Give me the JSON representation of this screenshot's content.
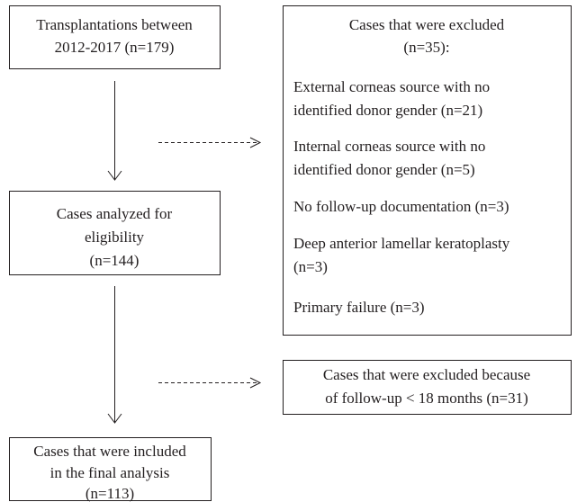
{
  "nodes": [
    {
      "lines": [
        "Transplantations between",
        "2012-2017 (n=179)"
      ]
    },
    {
      "title": [
        "Cases that were excluded",
        "(n=35):"
      ],
      "items": [
        [
          "External corneas source with no",
          "identified donor gender (n=21)"
        ],
        [
          "Internal corneas source with no",
          "identified donor gender (n=5)"
        ],
        [
          "No follow-up documentation (n=3)"
        ],
        [
          "Deep anterior lamellar keratoplasty",
          "(n=3)"
        ],
        [
          "Primary failure (n=3)"
        ]
      ]
    },
    {
      "lines": [
        "Cases analyzed for",
        "eligibility",
        "(n=144)"
      ]
    },
    {
      "lines": [
        "Cases that were excluded because",
        "of follow-up < 18 months (n=31)"
      ]
    },
    {
      "lines": [
        "Cases that were included",
        "in the final analysis",
        "(n=113)"
      ]
    }
  ]
}
